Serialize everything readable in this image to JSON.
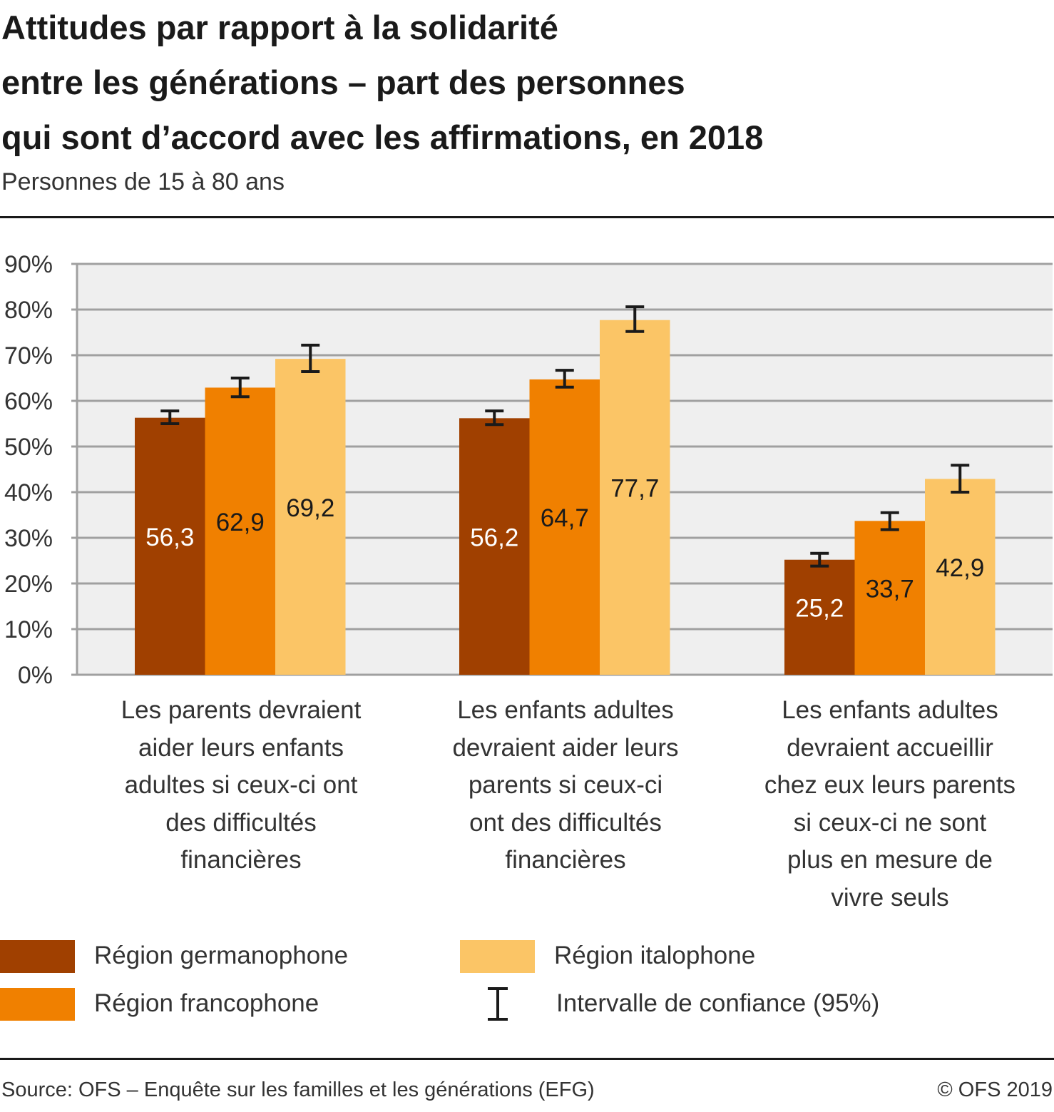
{
  "chart_data": {
    "type": "bar",
    "title": "Attitudes par rapport à la solidarité entre les générations – part des personnes qui sont d’accord avec les affirmations, en 2018",
    "title_lines": [
      "Attitudes par rapport à la solidarité",
      "entre les générations – part des personnes",
      "qui sont d’accord avec les affirmations, en 2018"
    ],
    "subtitle": "Personnes de 15 à 80 ans",
    "xlabel": "",
    "ylabel": "",
    "ylim": [
      0,
      90
    ],
    "yticks": [
      0,
      10,
      20,
      30,
      40,
      50,
      60,
      70,
      80,
      90
    ],
    "ytick_labels": [
      "0%",
      "10%",
      "20%",
      "30%",
      "40%",
      "50%",
      "60%",
      "70%",
      "80%",
      "90%"
    ],
    "grid": true,
    "categories": [
      "Les parents devraient aider leurs enfants adultes si ceux-ci ont des  difficultés financières",
      "Les enfants adultes devraient aider leurs parents si ceux-ci ont des difficultés financières",
      "Les enfants adultes devraient accueillir chez eux leurs parents si ceux-ci ne sont plus en mesure de vivre seuls"
    ],
    "category_lines": [
      [
        "Les parents devraient",
        "aider leurs enfants",
        "adultes si ceux-ci ont",
        "des  difficultés",
        "financières"
      ],
      [
        "Les enfants adultes",
        "devraient aider leurs",
        "parents si ceux-ci",
        "ont des difficultés",
        "financières"
      ],
      [
        "Les enfants adultes",
        "devraient accueillir",
        "chez eux leurs parents",
        "si ceux-ci ne sont",
        "plus en mesure de",
        "vivre seuls"
      ]
    ],
    "series": [
      {
        "name": "Région germanophone",
        "color": "#a04000",
        "values": [
          56.3,
          56.2,
          25.2
        ],
        "value_labels": [
          "56,3",
          "56,2",
          "25,2"
        ],
        "label_color": "#ffffff",
        "ci_low": [
          55.0,
          54.8,
          23.8
        ],
        "ci_high": [
          57.8,
          57.8,
          26.6
        ]
      },
      {
        "name": "Région francophone",
        "color": "#f08000",
        "values": [
          62.9,
          64.7,
          33.7
        ],
        "value_labels": [
          "62,9",
          "64,7",
          "33,7"
        ],
        "label_color": "#1a1a1a",
        "ci_low": [
          60.9,
          63.0,
          31.8
        ],
        "ci_high": [
          65.0,
          66.7,
          35.5
        ]
      },
      {
        "name": "Région italophone",
        "color": "#fbc566",
        "values": [
          69.2,
          77.7,
          42.9
        ],
        "value_labels": [
          "69,2",
          "77,7",
          "42,9"
        ],
        "label_color": "#1a1a1a",
        "ci_low": [
          66.4,
          75.2,
          40.0
        ],
        "ci_high": [
          72.2,
          80.6,
          45.9
        ]
      }
    ],
    "legend": {
      "placement": "bottom",
      "items": [
        {
          "label": "Région germanophone",
          "color": "#a04000",
          "kind": "swatch"
        },
        {
          "label": "Région italophone",
          "color": "#fbc566",
          "kind": "swatch"
        },
        {
          "label": "Région francophone",
          "color": "#f08000",
          "kind": "swatch"
        },
        {
          "label": "Intervalle de confiance (95%)",
          "kind": "error-bar"
        }
      ]
    },
    "source": "Source: OFS – Enquête sur les familles et les générations (EFG)",
    "copyright": "© OFS 2019"
  },
  "colors": {
    "plot_background": "#efefef",
    "gridline": "#a0a0a0",
    "error_bar": "#1a1a1a"
  }
}
